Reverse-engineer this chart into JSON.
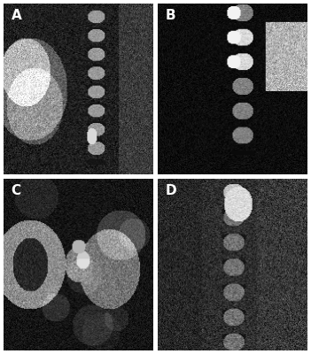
{
  "labels": [
    "A",
    "B",
    "C",
    "D"
  ],
  "label_color": "white",
  "label_fontsize": 11,
  "label_fontweight": "bold",
  "background_color": "white",
  "figsize": [
    3.51,
    4.0
  ],
  "dpi": 100
}
